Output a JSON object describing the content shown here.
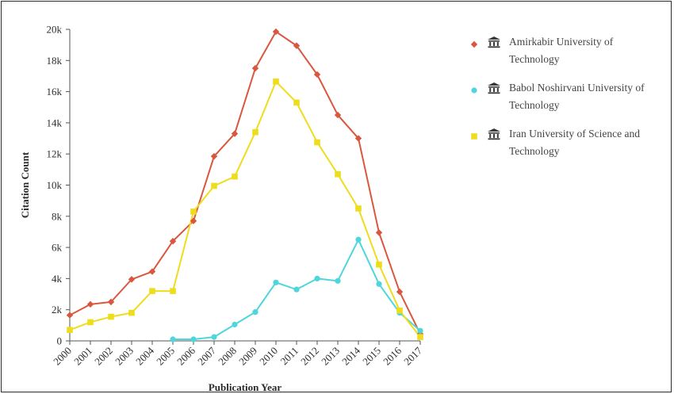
{
  "chart_data": {
    "type": "line",
    "xlabel": "Publication Year",
    "ylabel": "Citation Count",
    "x": [
      "2000",
      "2001",
      "2002",
      "2003",
      "2004",
      "2005",
      "2006",
      "2007",
      "2008",
      "2009",
      "2010",
      "2011",
      "2012",
      "2013",
      "2014",
      "2015",
      "2016",
      "2017"
    ],
    "ylim": [
      0,
      20000
    ],
    "yticks": [
      0,
      2000,
      4000,
      6000,
      8000,
      10000,
      12000,
      14000,
      16000,
      18000,
      20000
    ],
    "ytick_labels": [
      "0",
      "2k",
      "4k",
      "6k",
      "8k",
      "10k",
      "12k",
      "14k",
      "16k",
      "18k",
      "20k"
    ],
    "grid": false,
    "legend_position": "right",
    "series": [
      {
        "name": "Amirkabir University of Technology",
        "name_lines": [
          "Amirkabir University of",
          "Technology"
        ],
        "color": "#d9573f",
        "marker": "diamond",
        "values": [
          1650,
          2350,
          2500,
          3950,
          4450,
          6400,
          7700,
          11850,
          13300,
          17500,
          19850,
          18950,
          17100,
          14500,
          13000,
          6950,
          3150,
          450
        ]
      },
      {
        "name": "Babol Noshirvani University of Technology",
        "name_lines": [
          "Babol Noshirvani University of",
          "Technology"
        ],
        "color": "#4fd6da",
        "marker": "circle",
        "values": [
          null,
          null,
          null,
          null,
          null,
          100,
          100,
          250,
          1050,
          1850,
          3750,
          3300,
          4000,
          3850,
          6500,
          3650,
          1800,
          650
        ]
      },
      {
        "name": "Iran University of Science and Technology",
        "name_lines": [
          "Iran University of Science and",
          "Technology"
        ],
        "color": "#eedd1c",
        "marker": "square",
        "values": [
          700,
          1200,
          1550,
          1800,
          3200,
          3200,
          8300,
          9950,
          10550,
          13400,
          16650,
          15300,
          12750,
          10700,
          8500,
          4900,
          1950,
          250
        ]
      }
    ]
  },
  "legend": {
    "icon": "institution-icon"
  }
}
